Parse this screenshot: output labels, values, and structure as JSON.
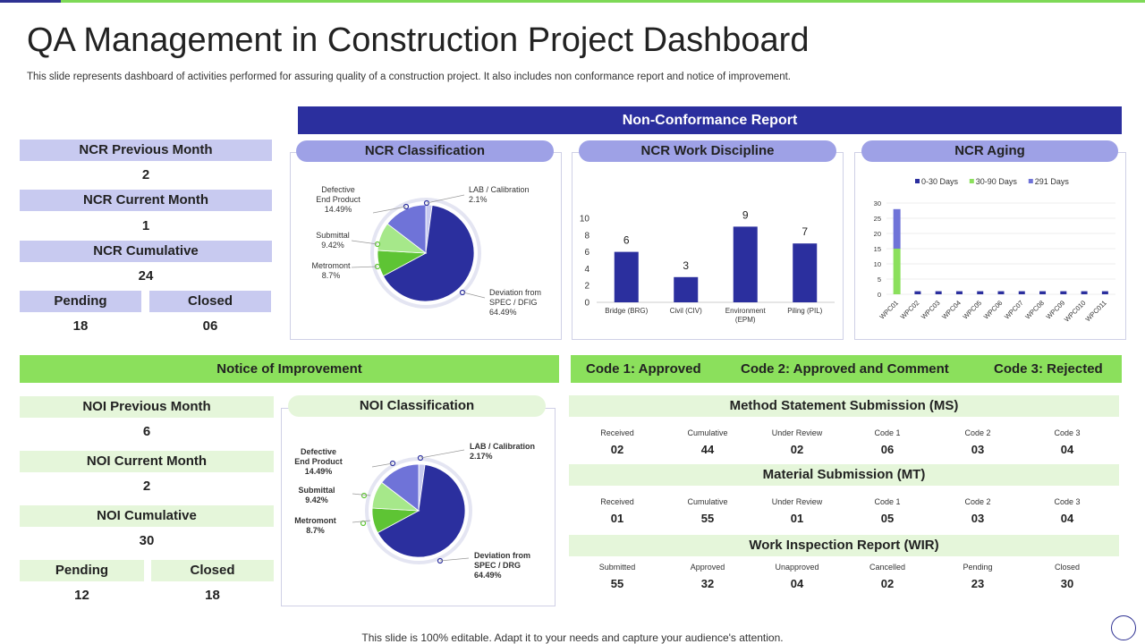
{
  "title": "QA Management in Construction Project Dashboard",
  "subtitle": "This slide represents dashboard of activities performed for assuring quality of a construction project. It also includes non conformance report and notice of improvement.",
  "ncr": {
    "header": "Non-Conformance Report",
    "prev_label": "NCR Previous Month",
    "prev_value": "2",
    "curr_label": "NCR Current Month",
    "curr_value": "1",
    "cum_label": "NCR Cumulative",
    "cum_value": "24",
    "pending_label": "Pending",
    "pending_value": "18",
    "closed_label": "Closed",
    "closed_value": "06",
    "classification_title": "NCR Classification",
    "discipline_title": "NCR Work Discipline",
    "aging_title": "NCR Aging",
    "pie_labels": {
      "defective": [
        "Defective",
        "End Product",
        "14.49%"
      ],
      "submittal": [
        "Submittal",
        "9.42%"
      ],
      "metromont": [
        "Metromont",
        "8.7%"
      ],
      "lab": [
        "LAB / Calibration",
        "2.1%"
      ],
      "deviation": [
        "Deviation from",
        "SPEC / DFIG",
        "64.49%"
      ]
    }
  },
  "noi": {
    "header": "Notice of Improvement",
    "prev_label": "NOI Previous Month",
    "prev_value": "6",
    "curr_label": "NOI Current Month",
    "curr_value": "2",
    "cum_label": "NOI Cumulative",
    "cum_value": "30",
    "pending_label": "Pending",
    "pending_value": "12",
    "closed_label": "Closed",
    "closed_value": "18",
    "classification_title": "NOI Classification",
    "pie_labels": {
      "defective": [
        "Defective",
        "End Product",
        "14.49%"
      ],
      "submittal": [
        "Submittal",
        "9.42%"
      ],
      "metromont": [
        "Metromont",
        "8.7%"
      ],
      "lab": [
        "LAB / Calibration",
        "2.17%"
      ],
      "deviation": [
        "Deviation from",
        "SPEC / DRG",
        "64.49%"
      ]
    }
  },
  "codes": {
    "code1": "Code 1: Approved",
    "code2": "Code 2: Approved and Comment",
    "code3": "Code 3: Rejected"
  },
  "ms": {
    "title": "Method Statement Submission (MS)",
    "cols": [
      "Received",
      "Cumulative",
      "Under Review",
      "Code 1",
      "Code 2",
      "Code 3"
    ],
    "values": [
      "02",
      "44",
      "02",
      "06",
      "03",
      "04"
    ]
  },
  "mt": {
    "title": "Material Submission (MT)",
    "cols": [
      "Received",
      "Cumulative",
      "Under Review",
      "Code 1",
      "Code 2",
      "Code 3"
    ],
    "values": [
      "01",
      "55",
      "01",
      "05",
      "03",
      "04"
    ]
  },
  "wir": {
    "title": "Work Inspection Report (WIR)",
    "cols": [
      "Submitted",
      "Approved",
      "Unapproved",
      "Cancelled",
      "Pending",
      "Closed"
    ],
    "values": [
      "55",
      "32",
      "04",
      "02",
      "23",
      "30"
    ]
  },
  "footer": "This slide is 100% editable. Adapt it to your needs and capture your audience's attention.",
  "colors": {
    "navy": "#2b2f9e",
    "lavender": "#c8caf0",
    "green": "#8be05c",
    "light_green": "#e5f6da",
    "pie_dark": "#2b2f9e",
    "pie_mid": "#6f73d8",
    "pie_green": "#5ec434",
    "pie_lightgreen": "#a6e88a",
    "pie_light": "#c7c9f0"
  },
  "chart_data": [
    {
      "type": "pie",
      "title": "NCR Classification",
      "labels": [
        "Deviation from SPEC / DFIG",
        "Metromont",
        "Submittal",
        "Defective End Product",
        "LAB / Calibration"
      ],
      "values": [
        64.49,
        8.7,
        9.42,
        14.49,
        2.1
      ]
    },
    {
      "type": "bar",
      "title": "NCR Work Discipline",
      "categories": [
        "Bridge (BRG)",
        "Civil (CIV)",
        "Environment (EPM)",
        "Piling (PIL)"
      ],
      "values": [
        6,
        3,
        9,
        7
      ],
      "ylim": [
        0,
        10
      ],
      "yticks": [
        0,
        2,
        4,
        6,
        8,
        10
      ]
    },
    {
      "type": "bar",
      "stacked": true,
      "title": "NCR Aging",
      "categories": [
        "WPC01",
        "WPC02",
        "WPC03",
        "WPC04",
        "WPC05",
        "WPC06",
        "WPC07",
        "WPC08",
        "WPC09",
        "WPC010",
        "WPC011"
      ],
      "series": [
        {
          "name": "0-30 Days",
          "values": [
            0,
            1,
            1,
            1,
            1,
            1,
            1,
            1,
            1,
            1,
            1
          ]
        },
        {
          "name": "30-90 Days",
          "values": [
            15,
            0,
            0,
            0,
            0,
            0,
            0,
            0,
            0,
            0,
            0
          ]
        },
        {
          "name": "291 Days",
          "values": [
            13,
            0,
            0,
            0,
            0,
            0,
            0,
            0,
            0,
            0,
            0
          ]
        }
      ],
      "ylim": [
        0,
        30
      ],
      "yticks": [
        0,
        5,
        10,
        15,
        20,
        25,
        30
      ],
      "legend": "top"
    },
    {
      "type": "pie",
      "title": "NOI Classification",
      "labels": [
        "Deviation from SPEC / DRG",
        "Metromont",
        "Submittal",
        "Defective End Product",
        "LAB / Calibration"
      ],
      "values": [
        64.49,
        8.7,
        9.42,
        14.49,
        2.17
      ]
    }
  ]
}
